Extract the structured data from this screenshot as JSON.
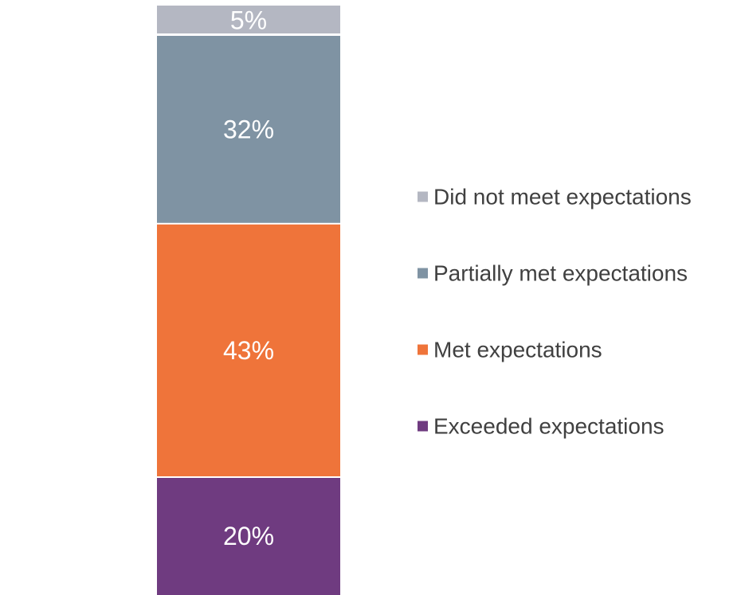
{
  "chart_data": {
    "type": "bar",
    "stacked": true,
    "title": "",
    "xlabel": "",
    "ylabel": "",
    "ylim": [
      0,
      100
    ],
    "grid": false,
    "legend_position": "right",
    "series": [
      {
        "name": "Exceeded expectations",
        "value": 20,
        "label": "20%",
        "color": "#6f3b80"
      },
      {
        "name": "Met expectations",
        "value": 43,
        "label": "43%",
        "color": "#ef743a"
      },
      {
        "name": "Partially met expectations",
        "value": 32,
        "label": "32%",
        "color": "#7f93a3"
      },
      {
        "name": "Did not meet expectations",
        "value": 5,
        "label": "5%",
        "color": "#b4b7c2"
      }
    ],
    "legend_order": [
      "Did not meet expectations",
      "Partially met expectations",
      "Met expectations",
      "Exceeded expectations"
    ]
  }
}
